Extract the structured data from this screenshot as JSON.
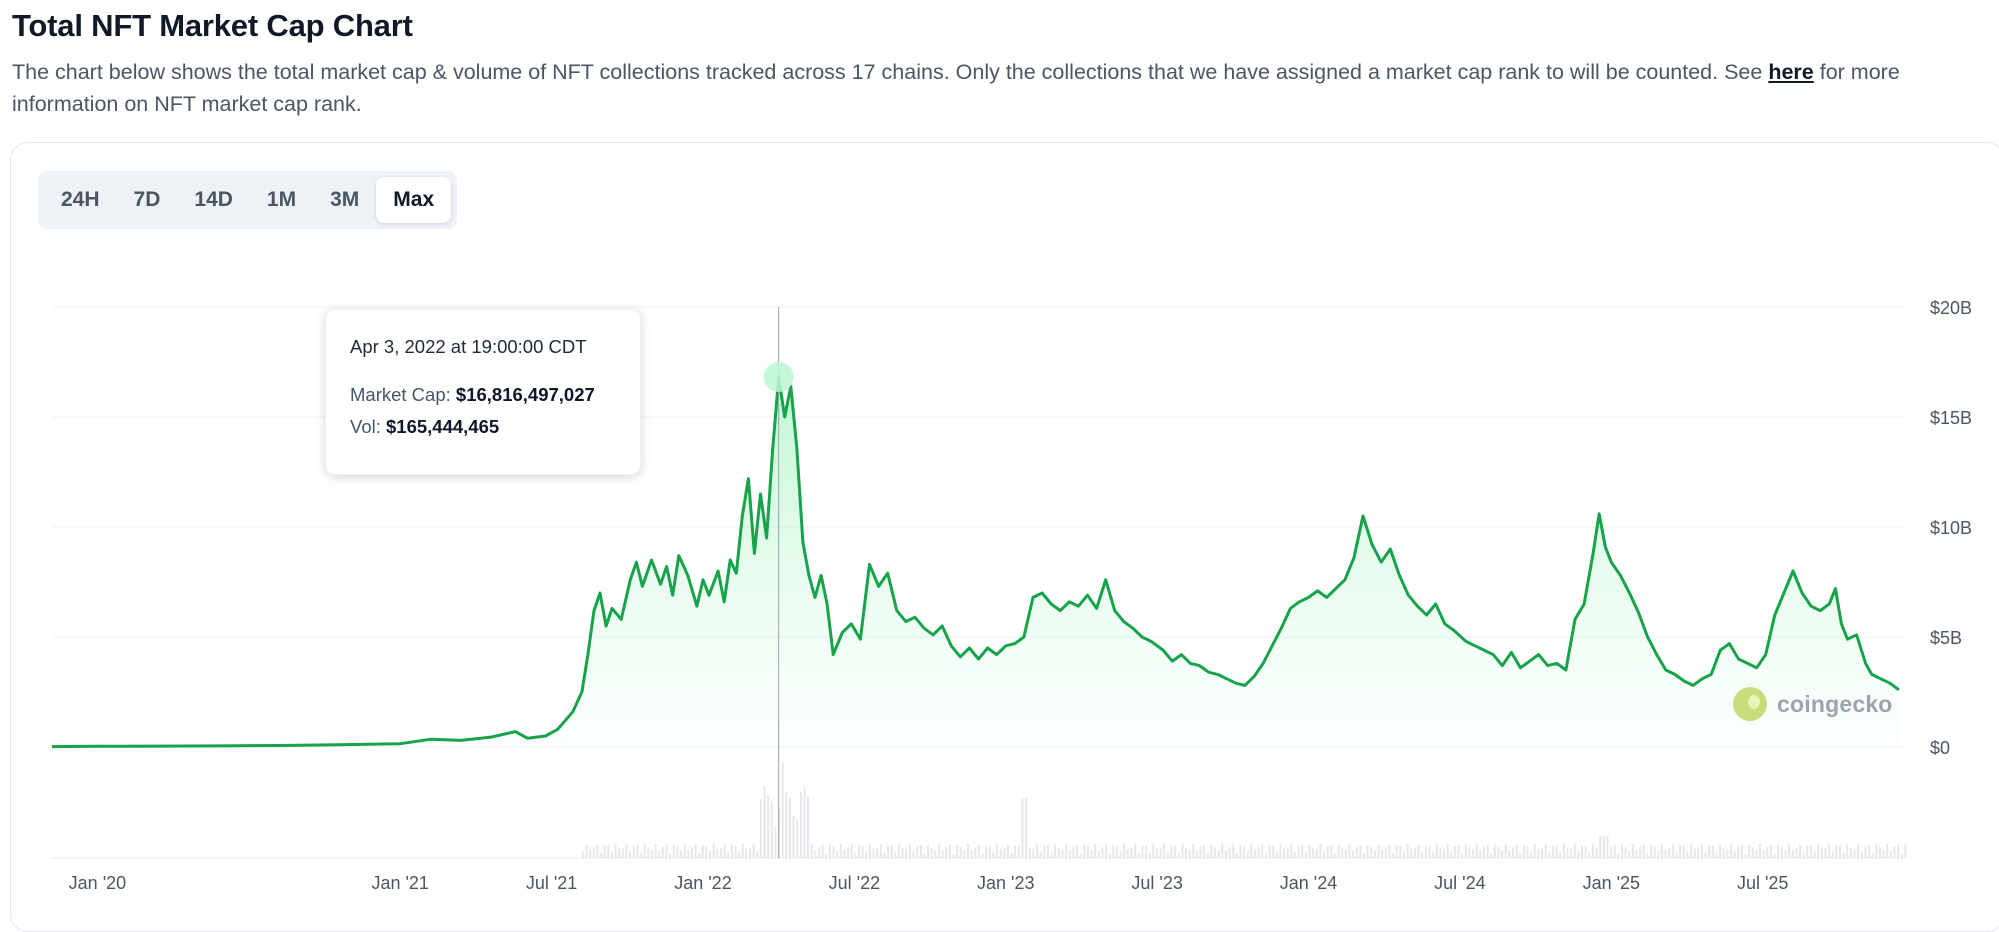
{
  "header": {
    "title": "Total NFT Market Cap Chart",
    "description": "The chart below shows the total market cap & volume of NFT collections tracked across 17 chains. Only the collections that we have assigned a market cap rank to will be counted. See",
    "link_text": "here",
    "description_end": "for more information on NFT market cap rank."
  },
  "time_ranges": [
    "24H",
    "7D",
    "14D",
    "1M",
    "3M",
    "Max"
  ],
  "selected_range": "Max",
  "tooltip": {
    "date": "Apr 3, 2022 at 19:00:00 CDT",
    "market_cap_label": "Market Cap:",
    "market_cap_value": "$16,816,497,027",
    "vol_label": "Vol:",
    "vol_value": "$165,444,465"
  },
  "watermark": "coingecko",
  "colors": {
    "line": "#16a34a",
    "area_top": "#bbf7d0",
    "grid": "#eef0f3",
    "volume": "#e5e7eb",
    "crosshair": "#9ca3af"
  },
  "chart_data": {
    "type": "area",
    "title": "",
    "xlabel": "",
    "ylabel": "",
    "x_ticks": [
      "Jan '20",
      "Jan '21",
      "Jul '21",
      "Jan '22",
      "Jul '22",
      "Jan '23",
      "Jul '23",
      "Jan '24",
      "Jul '24",
      "Jan '25",
      "Jul '25"
    ],
    "x_tick_years": [
      2020.0,
      2021.0,
      2021.5,
      2022.0,
      2022.5,
      2023.0,
      2023.5,
      2024.0,
      2024.5,
      2025.0,
      2025.5
    ],
    "y_ticks": [
      "$20B",
      "$15B",
      "$10B",
      "$5B",
      "$0"
    ],
    "y_tick_values": [
      20,
      15,
      10,
      5,
      0
    ],
    "ylim": [
      0,
      20
    ],
    "y_unit": "USD billions",
    "grid": true,
    "highlight": {
      "x": 2022.25,
      "y": 16.82
    },
    "series": [
      {
        "name": "Market Cap",
        "points": [
          [
            2019.85,
            0.02
          ],
          [
            2020.0,
            0.03
          ],
          [
            2020.2,
            0.04
          ],
          [
            2020.4,
            0.05
          ],
          [
            2020.6,
            0.07
          ],
          [
            2020.8,
            0.1
          ],
          [
            2021.0,
            0.15
          ],
          [
            2021.1,
            0.35
          ],
          [
            2021.2,
            0.3
          ],
          [
            2021.3,
            0.45
          ],
          [
            2021.38,
            0.7
          ],
          [
            2021.42,
            0.4
          ],
          [
            2021.48,
            0.5
          ],
          [
            2021.52,
            0.8
          ],
          [
            2021.57,
            1.6
          ],
          [
            2021.6,
            2.5
          ],
          [
            2021.62,
            4.2
          ],
          [
            2021.64,
            6.2
          ],
          [
            2021.66,
            7.0
          ],
          [
            2021.68,
            5.5
          ],
          [
            2021.7,
            6.3
          ],
          [
            2021.73,
            5.8
          ],
          [
            2021.76,
            7.6
          ],
          [
            2021.78,
            8.4
          ],
          [
            2021.8,
            7.3
          ],
          [
            2021.83,
            8.5
          ],
          [
            2021.86,
            7.4
          ],
          [
            2021.88,
            8.2
          ],
          [
            2021.9,
            6.9
          ],
          [
            2021.92,
            8.7
          ],
          [
            2021.95,
            7.8
          ],
          [
            2021.98,
            6.4
          ],
          [
            2022.0,
            7.6
          ],
          [
            2022.02,
            6.9
          ],
          [
            2022.05,
            8.0
          ],
          [
            2022.07,
            6.6
          ],
          [
            2022.09,
            8.5
          ],
          [
            2022.11,
            7.9
          ],
          [
            2022.13,
            10.5
          ],
          [
            2022.15,
            12.2
          ],
          [
            2022.17,
            8.8
          ],
          [
            2022.19,
            11.5
          ],
          [
            2022.21,
            9.5
          ],
          [
            2022.23,
            13.5
          ],
          [
            2022.25,
            16.8
          ],
          [
            2022.27,
            15.0
          ],
          [
            2022.29,
            16.4
          ],
          [
            2022.31,
            13.6
          ],
          [
            2022.33,
            9.3
          ],
          [
            2022.35,
            7.8
          ],
          [
            2022.37,
            6.8
          ],
          [
            2022.39,
            7.8
          ],
          [
            2022.41,
            6.5
          ],
          [
            2022.43,
            4.2
          ],
          [
            2022.46,
            5.2
          ],
          [
            2022.49,
            5.6
          ],
          [
            2022.52,
            4.9
          ],
          [
            2022.55,
            8.3
          ],
          [
            2022.58,
            7.3
          ],
          [
            2022.61,
            7.9
          ],
          [
            2022.64,
            6.2
          ],
          [
            2022.67,
            5.7
          ],
          [
            2022.7,
            5.9
          ],
          [
            2022.73,
            5.4
          ],
          [
            2022.76,
            5.1
          ],
          [
            2022.79,
            5.5
          ],
          [
            2022.82,
            4.6
          ],
          [
            2022.85,
            4.1
          ],
          [
            2022.88,
            4.5
          ],
          [
            2022.91,
            4.0
          ],
          [
            2022.94,
            4.5
          ],
          [
            2022.97,
            4.2
          ],
          [
            2023.0,
            4.6
          ],
          [
            2023.03,
            4.7
          ],
          [
            2023.06,
            5.0
          ],
          [
            2023.09,
            6.8
          ],
          [
            2023.12,
            7.0
          ],
          [
            2023.15,
            6.5
          ],
          [
            2023.18,
            6.2
          ],
          [
            2023.21,
            6.6
          ],
          [
            2023.24,
            6.4
          ],
          [
            2023.27,
            6.9
          ],
          [
            2023.3,
            6.3
          ],
          [
            2023.33,
            7.6
          ],
          [
            2023.36,
            6.2
          ],
          [
            2023.39,
            5.7
          ],
          [
            2023.42,
            5.4
          ],
          [
            2023.45,
            5.0
          ],
          [
            2023.48,
            4.8
          ],
          [
            2023.52,
            4.4
          ],
          [
            2023.55,
            3.9
          ],
          [
            2023.58,
            4.2
          ],
          [
            2023.61,
            3.8
          ],
          [
            2023.64,
            3.7
          ],
          [
            2023.67,
            3.4
          ],
          [
            2023.7,
            3.3
          ],
          [
            2023.73,
            3.1
          ],
          [
            2023.76,
            2.9
          ],
          [
            2023.79,
            2.8
          ],
          [
            2023.82,
            3.2
          ],
          [
            2023.85,
            3.8
          ],
          [
            2023.88,
            4.6
          ],
          [
            2023.91,
            5.4
          ],
          [
            2023.94,
            6.3
          ],
          [
            2023.97,
            6.6
          ],
          [
            2024.0,
            6.8
          ],
          [
            2024.03,
            7.1
          ],
          [
            2024.06,
            6.8
          ],
          [
            2024.09,
            7.2
          ],
          [
            2024.12,
            7.6
          ],
          [
            2024.15,
            8.6
          ],
          [
            2024.18,
            10.5
          ],
          [
            2024.21,
            9.2
          ],
          [
            2024.24,
            8.4
          ],
          [
            2024.27,
            9.0
          ],
          [
            2024.3,
            7.8
          ],
          [
            2024.33,
            6.9
          ],
          [
            2024.36,
            6.4
          ],
          [
            2024.39,
            6.0
          ],
          [
            2024.42,
            6.5
          ],
          [
            2024.45,
            5.6
          ],
          [
            2024.48,
            5.3
          ],
          [
            2024.52,
            4.8
          ],
          [
            2024.55,
            4.6
          ],
          [
            2024.58,
            4.4
          ],
          [
            2024.61,
            4.2
          ],
          [
            2024.64,
            3.7
          ],
          [
            2024.67,
            4.3
          ],
          [
            2024.7,
            3.6
          ],
          [
            2024.73,
            3.9
          ],
          [
            2024.76,
            4.2
          ],
          [
            2024.79,
            3.7
          ],
          [
            2024.82,
            3.8
          ],
          [
            2024.85,
            3.5
          ],
          [
            2024.88,
            5.8
          ],
          [
            2024.91,
            6.5
          ],
          [
            2024.94,
            8.8
          ],
          [
            2024.96,
            10.6
          ],
          [
            2024.98,
            9.1
          ],
          [
            2025.0,
            8.4
          ],
          [
            2025.03,
            7.8
          ],
          [
            2025.06,
            7.0
          ],
          [
            2025.09,
            6.1
          ],
          [
            2025.12,
            5.0
          ],
          [
            2025.15,
            4.2
          ],
          [
            2025.18,
            3.5
          ],
          [
            2025.21,
            3.3
          ],
          [
            2025.24,
            3.0
          ],
          [
            2025.27,
            2.8
          ],
          [
            2025.3,
            3.1
          ],
          [
            2025.33,
            3.3
          ],
          [
            2025.36,
            4.4
          ],
          [
            2025.39,
            4.7
          ],
          [
            2025.42,
            4.0
          ],
          [
            2025.45,
            3.8
          ],
          [
            2025.48,
            3.6
          ],
          [
            2025.51,
            4.2
          ],
          [
            2025.54,
            6.0
          ],
          [
            2025.57,
            7.0
          ],
          [
            2025.6,
            8.0
          ],
          [
            2025.63,
            7.0
          ],
          [
            2025.66,
            6.4
          ],
          [
            2025.69,
            6.2
          ],
          [
            2025.72,
            6.5
          ],
          [
            2025.74,
            7.2
          ],
          [
            2025.76,
            5.6
          ],
          [
            2025.78,
            4.9
          ],
          [
            2025.81,
            5.1
          ],
          [
            2025.84,
            3.8
          ],
          [
            2025.86,
            3.3
          ],
          [
            2025.89,
            3.1
          ],
          [
            2025.92,
            2.9
          ],
          [
            2025.95,
            2.6
          ]
        ]
      }
    ]
  }
}
